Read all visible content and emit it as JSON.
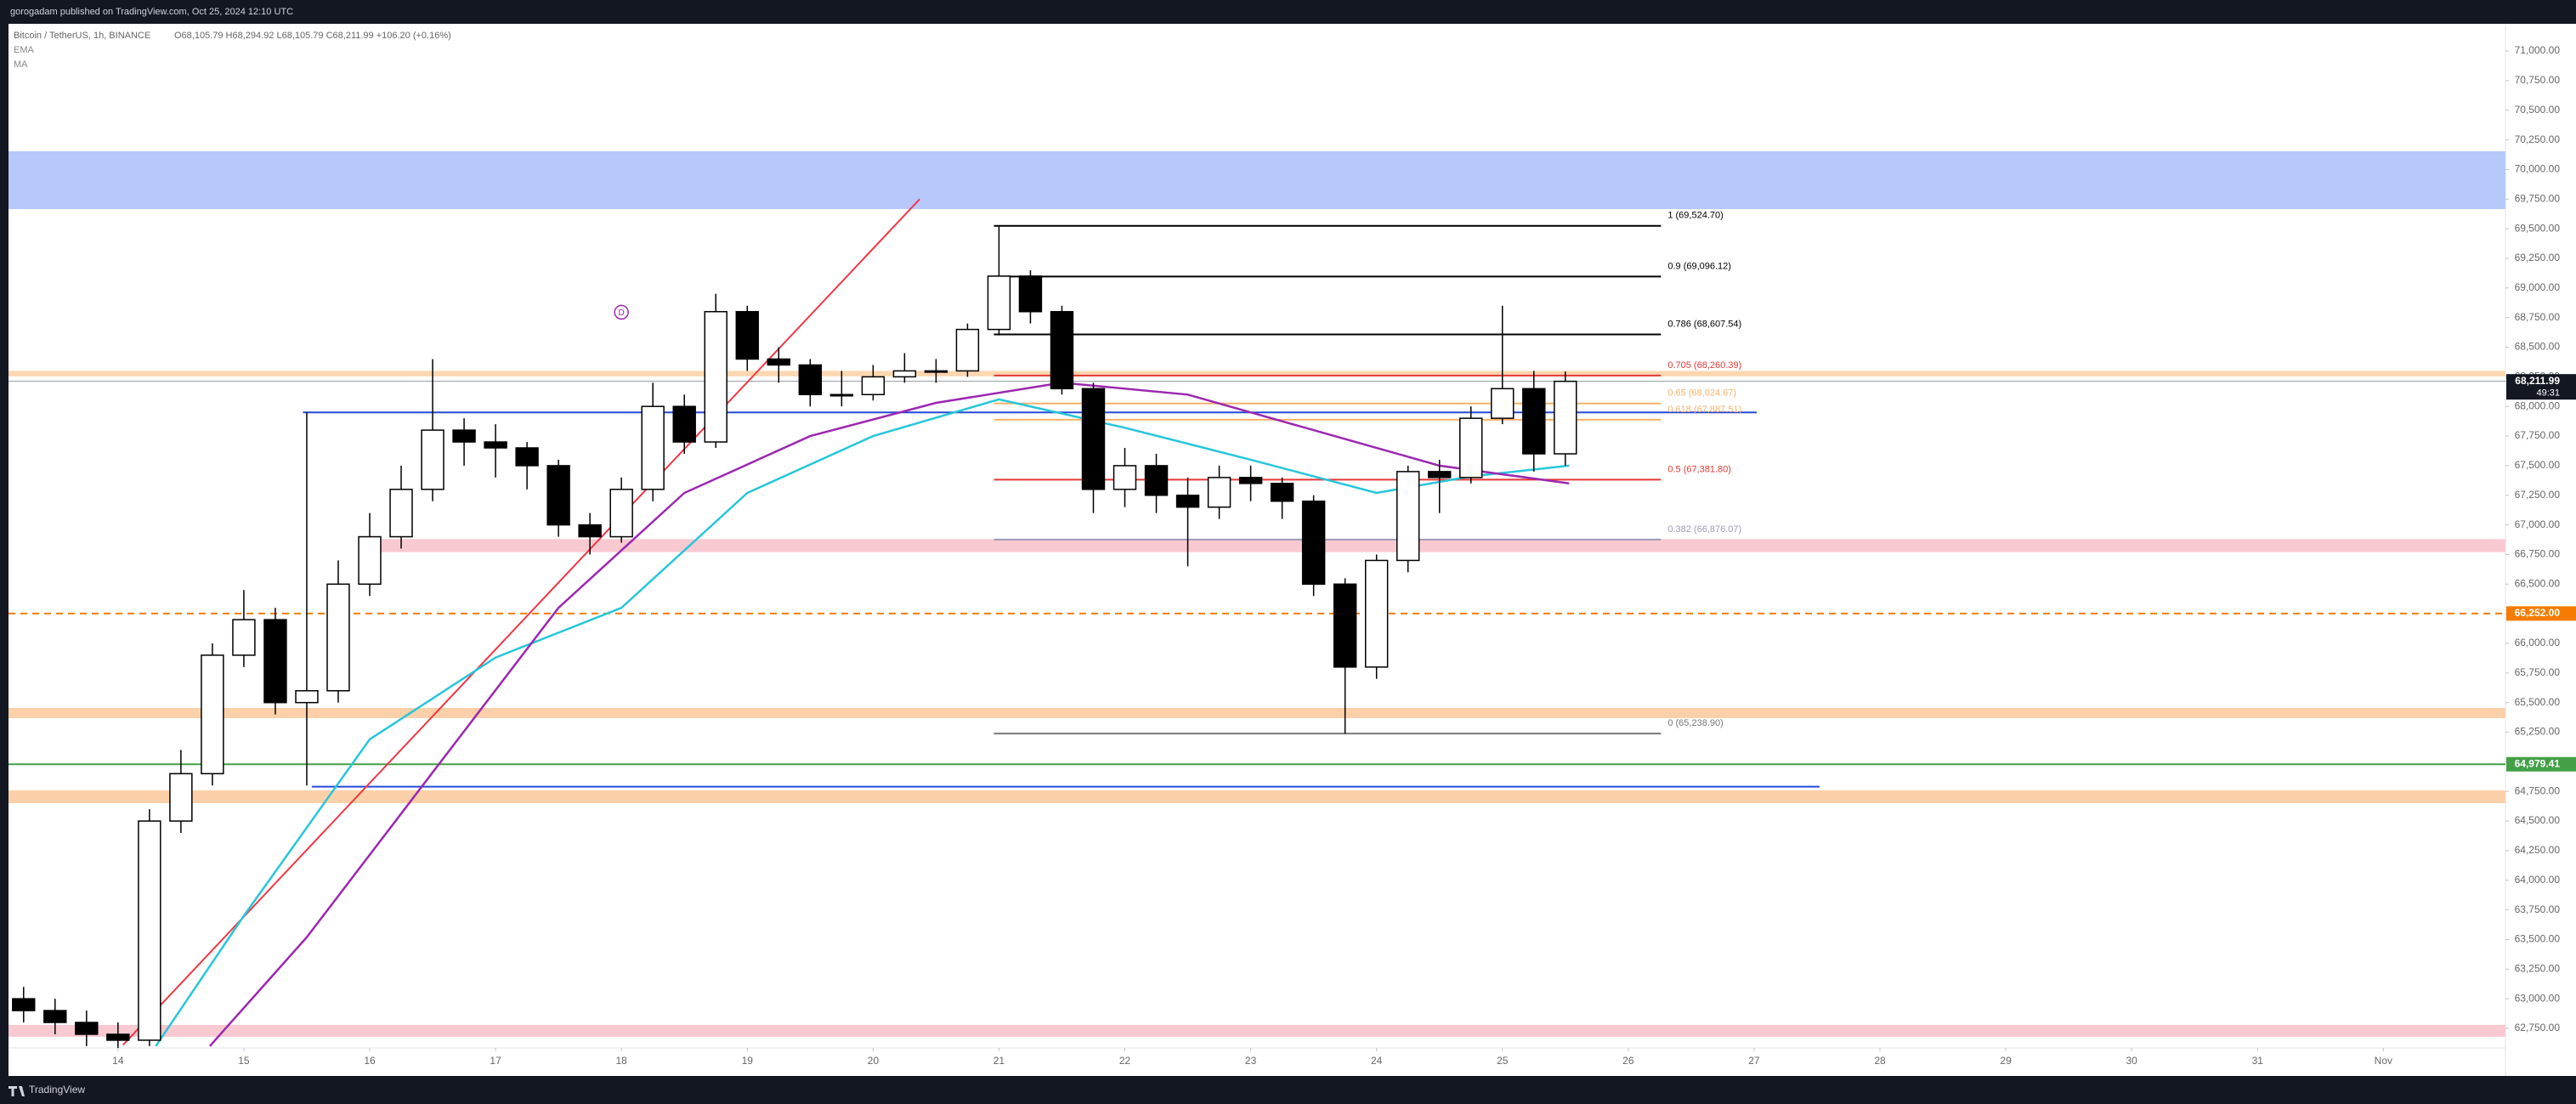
{
  "header": {
    "text": "gorogadam published on TradingView.com, Oct 25, 2024 12:10 UTC"
  },
  "legend": {
    "symbol": "Bitcoin / TetherUS, 1h, BINANCE",
    "ohlc": "O68,105.79 H68,294.92 L68,105.79 C68,211.99 +106.20 (+0.16%)",
    "indicators": [
      "EMA",
      "MA"
    ]
  },
  "footer": {
    "brand": "TradingView"
  },
  "chart_data": {
    "type": "candlestick",
    "x": [
      13.25,
      13.5,
      13.75,
      14,
      14.25,
      14.5,
      14.75,
      15,
      15.25,
      15.5,
      15.75,
      16,
      16.25,
      16.5,
      16.75,
      17,
      17.25,
      17.5,
      17.75,
      18,
      18.25,
      18.5,
      18.75,
      19,
      19.25,
      19.5,
      19.75,
      20,
      20.25,
      20.5,
      20.75,
      21,
      21.25,
      21.5,
      21.75,
      22,
      22.25,
      22.5,
      22.75,
      23,
      23.25,
      23.5,
      23.75,
      24,
      24.25,
      24.5,
      24.75,
      25,
      25.25,
      25.5
    ],
    "open": [
      63000,
      62900,
      62800,
      62700,
      62650,
      64500,
      64900,
      65900,
      66200,
      65500,
      65600,
      66500,
      66900,
      67300,
      67800,
      67700,
      67650,
      67500,
      67000,
      66900,
      67300,
      68000,
      67700,
      68800,
      68400,
      68350,
      68100,
      68100,
      68250,
      68300,
      68300,
      68650,
      69100,
      68800,
      68150,
      67300,
      67500,
      67250,
      67150,
      67400,
      67350,
      67200,
      66500,
      65800,
      66700,
      67450,
      67400,
      67900,
      68150,
      67600
    ],
    "high": [
      63100,
      63000,
      62900,
      62800,
      64600,
      65100,
      66000,
      66450,
      66300,
      67950,
      66700,
      67100,
      67500,
      68400,
      67900,
      67850,
      67700,
      67550,
      67100,
      67400,
      68200,
      68100,
      68950,
      68850,
      68500,
      68400,
      68300,
      68350,
      68450,
      68400,
      68700,
      69524.7,
      69150,
      68850,
      68200,
      67650,
      67600,
      67400,
      67500,
      67500,
      67400,
      67250,
      66550,
      66750,
      67500,
      67550,
      68000,
      68850,
      68300,
      68294.92
    ],
    "low": [
      62800,
      62700,
      62600,
      62450,
      62600,
      64400,
      64800,
      65800,
      65400,
      64800,
      65500,
      66400,
      66800,
      67200,
      67500,
      67400,
      67300,
      66900,
      66750,
      66850,
      67200,
      67600,
      67650,
      68300,
      68200,
      68000,
      68000,
      68050,
      68200,
      68200,
      68250,
      68600,
      68700,
      68100,
      67100,
      67150,
      67100,
      66650,
      67050,
      67200,
      67050,
      66400,
      65238.9,
      65700,
      66600,
      67100,
      67350,
      67850,
      67450,
      67500
    ],
    "close": [
      62900,
      62800,
      62700,
      62650,
      64500,
      64900,
      65900,
      66200,
      65500,
      65600,
      66500,
      66900,
      67300,
      67800,
      67700,
      67650,
      67500,
      67000,
      66900,
      67300,
      68000,
      67700,
      68800,
      68400,
      68350,
      68100,
      68100,
      68250,
      68300,
      68300,
      68650,
      69100,
      68800,
      68150,
      67300,
      67500,
      67250,
      67150,
      67400,
      67350,
      67200,
      66500,
      65800,
      66700,
      67450,
      67400,
      67900,
      68150,
      67600,
      68211.99
    ],
    "up_color": "#ffffff",
    "down_color": "#000000",
    "lines": [
      {
        "name": "EMA",
        "color": "#26c6da",
        "x": [
          14.3,
          15,
          16,
          17,
          18,
          19,
          20,
          21,
          22,
          23,
          24,
          24.75,
          25.53
        ],
        "values": [
          62600,
          63700,
          65190,
          65880,
          66300,
          67270,
          67750,
          68060,
          67820,
          67550,
          67270,
          67410,
          67500
        ]
      },
      {
        "name": "MA",
        "color": "#9c27b0",
        "x": [
          14.73,
          15.5,
          16.5,
          17.5,
          18.5,
          19.5,
          20.5,
          21.5,
          22.5,
          23.5,
          24.5,
          25.53
        ],
        "values": [
          62600,
          63520,
          64910,
          66300,
          67270,
          67750,
          68030,
          68200,
          68100,
          67800,
          67500,
          67350
        ]
      }
    ],
    "zones": [
      {
        "top": 70154,
        "bottom": 69666,
        "color": "#b7c8fb"
      },
      {
        "top": 68300,
        "bottom": 68254,
        "color": "#fcd7b0"
      },
      {
        "top": 66880,
        "bottom": 66770,
        "color": "#f9c9d2",
        "x0": 16.06
      },
      {
        "top": 65455,
        "bottom": 65369,
        "color": "#fbd0a8"
      },
      {
        "top": 64759,
        "bottom": 64651,
        "color": "#fbd0a8"
      },
      {
        "top": 62779,
        "bottom": 62679,
        "color": "#f9c9d2"
      }
    ],
    "hlines": [
      {
        "value": 67950,
        "x0": 15.47,
        "x1": 27.02,
        "color": "#2448d8"
      },
      {
        "value": 64790,
        "x0": 15.54,
        "x1": 27.52,
        "color": "#2448d8"
      }
    ],
    "trendline": {
      "x": [
        14.04,
        20.37
      ],
      "values": [
        62610,
        69750
      ],
      "color": "#f23645"
    },
    "marker": {
      "label": "D",
      "x": 18.0,
      "value": 68795,
      "color": "#9c27b0"
    },
    "fib": {
      "x": [
        20.96,
        26.26
      ],
      "levels": [
        {
          "label": "1 (69,524.70)",
          "value": 69524.7,
          "color": "#000000"
        },
        {
          "label": "0.9 (69,096.12)",
          "value": 69096.12,
          "color": "#000000"
        },
        {
          "label": "0.786 (68,607.54)",
          "value": 68607.54,
          "color": "#000000"
        },
        {
          "label": "0.705 (68,260.39)",
          "value": 68260.39,
          "color": "#e53935"
        },
        {
          "label": "0.65 (68,024.67)",
          "value": 68024.67,
          "color": "#f6b26b"
        },
        {
          "label": "0.618 (67,887.51)",
          "value": 67887.51,
          "color": "#f6b26b"
        },
        {
          "label": "0.5 (67,381.80)",
          "value": 67381.8,
          "color": "#e53935"
        },
        {
          "label": "0.382 (66,876.07)",
          "value": 66876.07,
          "color": "#9e9ab8"
        },
        {
          "label": "0 (65,238.90)",
          "value": 65238.9,
          "color": "#787878"
        }
      ]
    },
    "price_labels": [
      {
        "value": 68211.99,
        "label": "68,211.99",
        "timer": "49:31",
        "color": "#131722"
      },
      {
        "value": 66252,
        "label": "66,252.00",
        "color": "#f57c00",
        "dashed": true
      },
      {
        "value": 64979.41,
        "label": "64,979.41",
        "color": "#43a047"
      }
    ],
    "xlim": [
      13.13,
      32.97
    ],
    "ylim": [
      62585,
      71230
    ],
    "xticks": [
      14,
      15,
      16,
      17,
      18,
      19,
      20,
      21,
      22,
      23,
      24,
      25,
      26,
      27,
      28,
      29,
      30,
      31,
      {
        "value": 32,
        "label": "Nov"
      }
    ],
    "yticks": [
      {
        "value": 62750,
        "label": "62,750.00"
      },
      {
        "value": 63000,
        "label": "63,000.00"
      },
      {
        "value": 63250,
        "label": "63,250.00"
      },
      {
        "value": 63500,
        "label": "63,500.00"
      },
      {
        "value": 63750,
        "label": "63,750.00"
      },
      {
        "value": 64000,
        "label": "64,000.00"
      },
      {
        "value": 64250,
        "label": "64,250.00"
      },
      {
        "value": 64500,
        "label": "64,500.00"
      },
      {
        "value": 64750,
        "label": "64,750.00"
      },
      {
        "value": 65000,
        "label": "65,000.00"
      },
      {
        "value": 65250,
        "label": "65,250.00"
      },
      {
        "value": 65500,
        "label": "65,500.00"
      },
      {
        "value": 65750,
        "label": "65,750.00"
      },
      {
        "value": 66000,
        "label": "66,000.00"
      },
      {
        "value": 66250,
        "label": "66,250.00"
      },
      {
        "value": 66500,
        "label": "66,500.00"
      },
      {
        "value": 66750,
        "label": "66,750.00"
      },
      {
        "value": 67000,
        "label": "67,000.00"
      },
      {
        "value": 67250,
        "label": "67,250.00"
      },
      {
        "value": 67500,
        "label": "67,500.00"
      },
      {
        "value": 67750,
        "label": "67,750.00"
      },
      {
        "value": 68000,
        "label": "68,000.00"
      },
      {
        "value": 68250,
        "label": "68,250.00"
      },
      {
        "value": 68500,
        "label": "68,500.00"
      },
      {
        "value": 68750,
        "label": "68,750.00"
      },
      {
        "value": 69000,
        "label": "69,000.00"
      },
      {
        "value": 69250,
        "label": "69,250.00"
      },
      {
        "value": 69500,
        "label": "69,500.00"
      },
      {
        "value": 69750,
        "label": "69,750.00"
      },
      {
        "value": 70000,
        "label": "70,000.00"
      },
      {
        "value": 70250,
        "label": "70,250.00"
      },
      {
        "value": 70500,
        "label": "70,500.00"
      },
      {
        "value": 70750,
        "label": "70,750.00"
      },
      {
        "value": 71000,
        "label": "71,000.00"
      }
    ]
  }
}
